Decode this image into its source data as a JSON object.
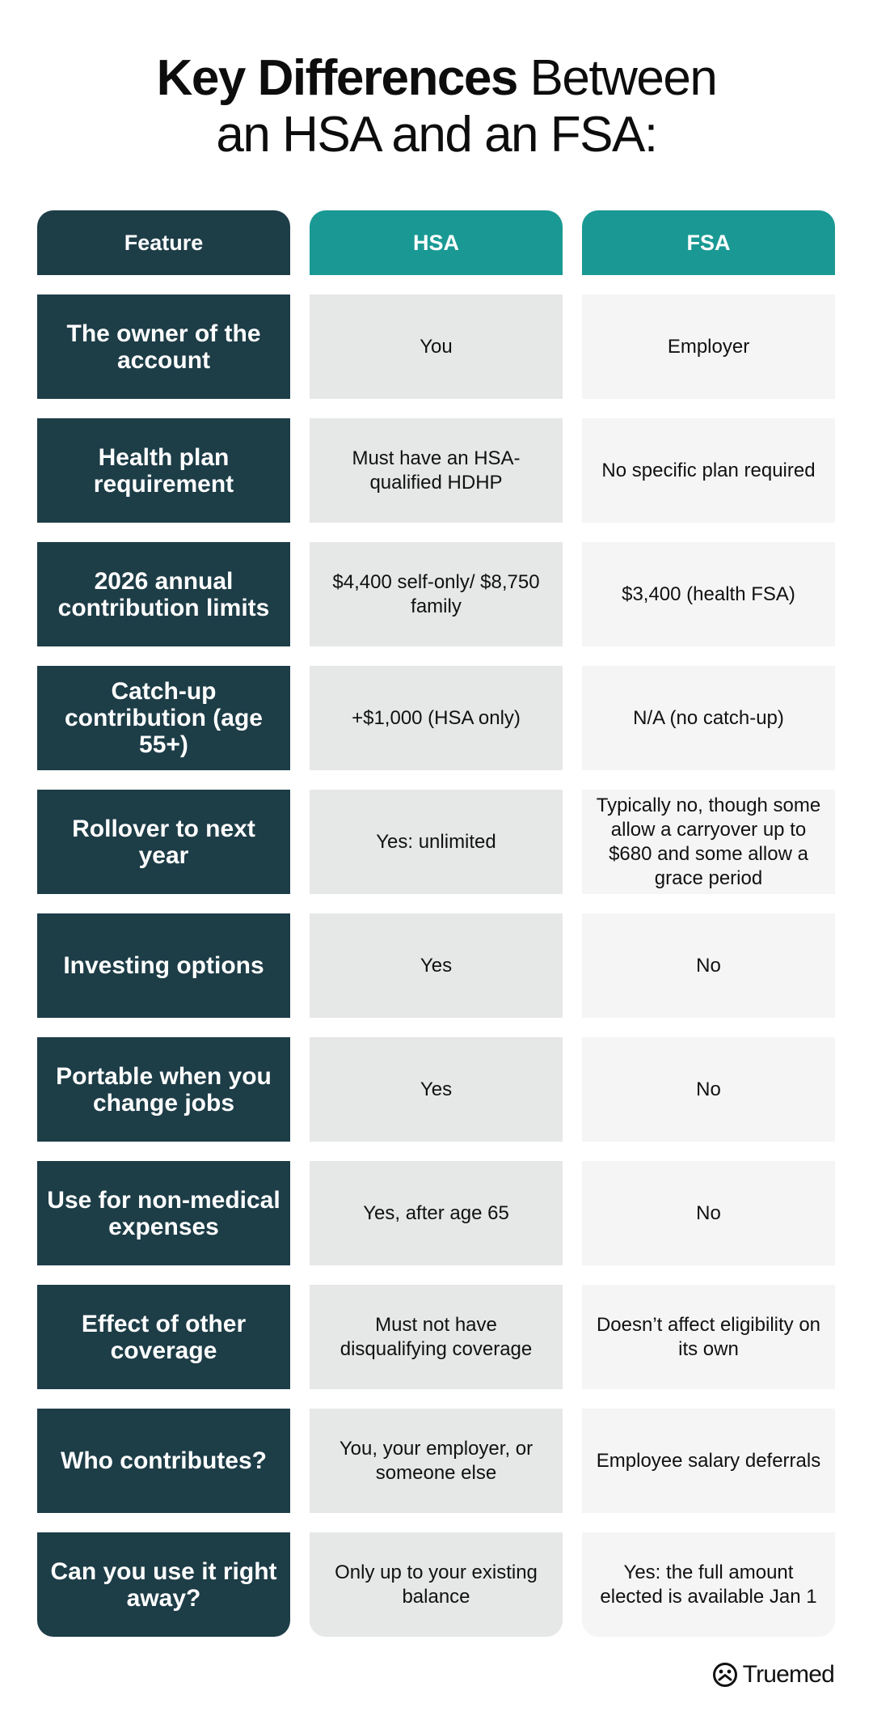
{
  "title": {
    "line1_bold": "Key Differences",
    "line1_regular": " Between",
    "line2": "an HSA and an FSA:"
  },
  "table": {
    "headers": [
      "Feature",
      "HSA",
      "FSA"
    ],
    "rows": [
      {
        "feature": "The owner of the account",
        "hsa": "You",
        "fsa": "Employer"
      },
      {
        "feature": "Health plan requirement",
        "hsa": "Must have an HSA-qualified HDHP",
        "fsa": "No specific plan required"
      },
      {
        "feature": "2026 annual contribution limits",
        "hsa": "$4,400 self-only/ $8,750 family",
        "fsa": "$3,400 (health FSA)"
      },
      {
        "feature": "Catch-up contribution (age 55+)",
        "hsa": "+$1,000 (HSA only)",
        "fsa": "N/A (no catch-up)"
      },
      {
        "feature": "Rollover to next year",
        "hsa": "Yes: unlimited",
        "fsa": "Typically no, though some allow a carryover up to $680 and some allow a grace period"
      },
      {
        "feature": "Investing options",
        "hsa": "Yes",
        "fsa": "No"
      },
      {
        "feature": "Portable when you change jobs",
        "hsa": "Yes",
        "fsa": "No"
      },
      {
        "feature": "Use for non-medical expenses",
        "hsa": "Yes, after age 65",
        "fsa": "No"
      },
      {
        "feature": "Effect of other coverage",
        "hsa": "Must not have disqualifying coverage",
        "fsa": "Doesn’t affect eligibility on its own"
      },
      {
        "feature": "Who contributes?",
        "hsa": "You, your employer, or someone else",
        "fsa": "Employee salary deferrals"
      },
      {
        "feature": "Can you use it right away?",
        "hsa": "Only up to your existing balance",
        "fsa": "Yes: the full amount elected is available Jan 1"
      }
    ]
  },
  "brand": {
    "name": "Truemed",
    "icon": "truemed-logo-icon"
  },
  "colors": {
    "feature_bg": "#1d3d47",
    "accent_teal": "#1a9994",
    "hsa_cell_bg": "#e6e7e7",
    "fsa_cell_bg": "#f5f5f5"
  }
}
